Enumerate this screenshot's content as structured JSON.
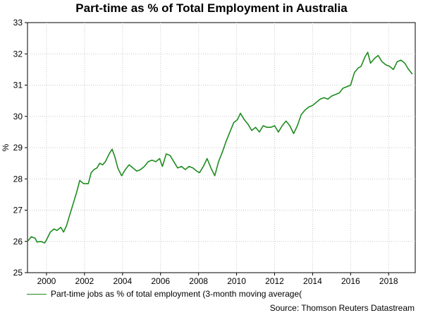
{
  "chart_data": {
    "type": "line",
    "title": "Part-time as % of Total Employment in Australia",
    "ylabel": "%",
    "xlabel": "",
    "xlim": [
      1999.0,
      2019.4
    ],
    "ylim": [
      25,
      33
    ],
    "x_ticks": [
      2000,
      2002,
      2004,
      2006,
      2008,
      2010,
      2012,
      2014,
      2016,
      2018
    ],
    "y_ticks": [
      25,
      26,
      27,
      28,
      29,
      30,
      31,
      32,
      33
    ],
    "grid": true,
    "legend_position": "bottom-left",
    "series": [
      {
        "name": "Part-time jobs as % of total employment (3-month moving average(",
        "color": "#1f8c1f",
        "x": [
          1999.0,
          1999.2,
          1999.4,
          1999.5,
          1999.7,
          1999.9,
          2000.0,
          2000.2,
          2000.4,
          2000.55,
          2000.75,
          2000.9,
          2001.05,
          2001.2,
          2001.4,
          2001.6,
          2001.75,
          2001.95,
          2002.2,
          2002.35,
          2002.5,
          2002.65,
          2002.8,
          2002.95,
          2003.1,
          2003.3,
          2003.45,
          2003.6,
          2003.75,
          2003.95,
          2004.15,
          2004.35,
          2004.55,
          2004.75,
          2004.95,
          2005.15,
          2005.35,
          2005.55,
          2005.75,
          2005.95,
          2006.1,
          2006.3,
          2006.5,
          2006.7,
          2006.9,
          2007.1,
          2007.3,
          2007.5,
          2007.7,
          2007.9,
          2008.05,
          2008.25,
          2008.45,
          2008.65,
          2008.85,
          2009.05,
          2009.25,
          2009.45,
          2009.65,
          2009.85,
          2010.05,
          2010.2,
          2010.4,
          2010.6,
          2010.8,
          2011.0,
          2011.2,
          2011.4,
          2011.6,
          2011.8,
          2012.0,
          2012.2,
          2012.4,
          2012.6,
          2012.8,
          2013.0,
          2013.2,
          2013.4,
          2013.6,
          2013.8,
          2014.0,
          2014.2,
          2014.4,
          2014.6,
          2014.8,
          2015.0,
          2015.2,
          2015.4,
          2015.6,
          2015.8,
          2016.0,
          2016.2,
          2016.4,
          2016.55,
          2016.75,
          2016.9,
          2017.05,
          2017.25,
          2017.45,
          2017.65,
          2017.85,
          2018.05,
          2018.25,
          2018.45,
          2018.65,
          2018.85,
          2019.05,
          2019.25
        ],
        "values": [
          26.0,
          26.15,
          26.1,
          25.98,
          26.0,
          25.95,
          26.05,
          26.3,
          26.4,
          26.35,
          26.45,
          26.3,
          26.5,
          26.8,
          27.2,
          27.6,
          27.95,
          27.85,
          27.85,
          28.2,
          28.3,
          28.35,
          28.5,
          28.45,
          28.55,
          28.8,
          28.95,
          28.7,
          28.35,
          28.1,
          28.3,
          28.45,
          28.35,
          28.25,
          28.3,
          28.4,
          28.55,
          28.6,
          28.55,
          28.65,
          28.4,
          28.8,
          28.75,
          28.55,
          28.35,
          28.4,
          28.3,
          28.4,
          28.35,
          28.25,
          28.2,
          28.4,
          28.65,
          28.35,
          28.1,
          28.55,
          28.85,
          29.2,
          29.5,
          29.8,
          29.9,
          30.1,
          29.9,
          29.75,
          29.55,
          29.65,
          29.5,
          29.7,
          29.65,
          29.65,
          29.7,
          29.5,
          29.7,
          29.85,
          29.7,
          29.45,
          29.7,
          30.05,
          30.2,
          30.3,
          30.35,
          30.45,
          30.55,
          30.6,
          30.55,
          30.65,
          30.7,
          30.75,
          30.9,
          30.95,
          31.0,
          31.4,
          31.55,
          31.6,
          31.9,
          32.05,
          31.7,
          31.85,
          31.95,
          31.75,
          31.65,
          31.6,
          31.5,
          31.75,
          31.8,
          31.7,
          31.5,
          31.35
        ]
      }
    ]
  },
  "footer": {
    "source": "Source: Thomson Reuters Datastream"
  }
}
